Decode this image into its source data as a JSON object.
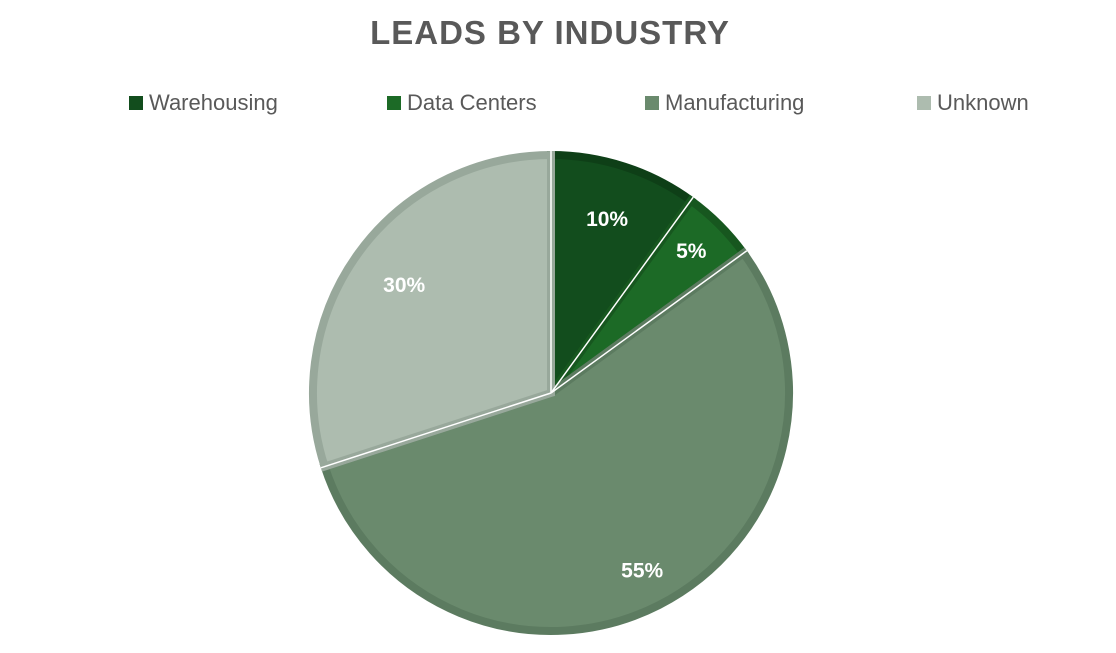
{
  "chart_data": {
    "type": "pie",
    "title": "LEADS BY INDUSTRY",
    "legend_position": "top",
    "categories": [
      "Warehousing",
      "Data Centers",
      "Manufacturing",
      "Unknown"
    ],
    "values": [
      10,
      5,
      55,
      30
    ],
    "data_labels": [
      "10%",
      "5%",
      "55%",
      "30%"
    ],
    "colors": [
      "#124d1d",
      "#1c6a26",
      "#6a8a6d",
      "#adbcaf"
    ],
    "border_colors": [
      "#0e3f17",
      "#17571f",
      "#5c7b60",
      "#98a89b"
    ]
  }
}
